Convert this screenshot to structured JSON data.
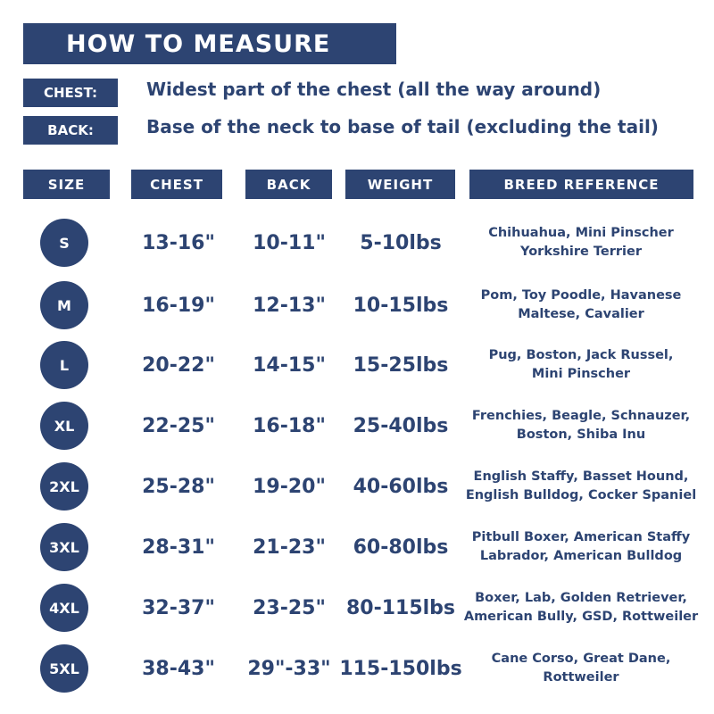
{
  "title": "HOW TO MEASURE",
  "measures": [
    {
      "label": "CHEST:",
      "text": "Widest part of the chest (all the way around)"
    },
    {
      "label": "BACK:",
      "text": "Base of the neck to base of tail (excluding the tail)"
    }
  ],
  "headers": {
    "size": "SIZE",
    "chest": "CHEST",
    "back": "BACK",
    "weight": "WEIGHT",
    "breed": "BREED REFERENCE"
  },
  "rows": [
    {
      "size": "S",
      "chest": "13-16\"",
      "back": "10-11\"",
      "weight": "5-10lbs",
      "breed1": "Chihuahua, Mini Pinscher",
      "breed2": "Yorkshire Terrier"
    },
    {
      "size": "M",
      "chest": "16-19\"",
      "back": "12-13\"",
      "weight": "10-15lbs",
      "breed1": "Pom, Toy Poodle, Havanese",
      "breed2": "Maltese, Cavalier"
    },
    {
      "size": "L",
      "chest": "20-22\"",
      "back": "14-15\"",
      "weight": "15-25lbs",
      "breed1": "Pug, Boston, Jack Russel,",
      "breed2": "Mini Pinscher"
    },
    {
      "size": "XL",
      "chest": "22-25\"",
      "back": "16-18\"",
      "weight": "25-40lbs",
      "breed1": "Frenchies, Beagle, Schnauzer,",
      "breed2": "Boston, Shiba Inu"
    },
    {
      "size": "2XL",
      "chest": "25-28\"",
      "back": "19-20\"",
      "weight": "40-60lbs",
      "breed1": "English Staffy, Basset Hound,",
      "breed2": "English Bulldog, Cocker Spaniel"
    },
    {
      "size": "3XL",
      "chest": "28-31\"",
      "back": "21-23\"",
      "weight": "60-80lbs",
      "breed1": "Pitbull Boxer, American Staffy",
      "breed2": "Labrador, American Bulldog"
    },
    {
      "size": "4XL",
      "chest": "32-37\"",
      "back": "23-25\"",
      "weight": "80-115lbs",
      "breed1": "Boxer, Lab, Golden Retriever,",
      "breed2": "American Bully, GSD, Rottweiler"
    },
    {
      "size": "5XL",
      "chest": "38-43\"",
      "back": "29\"-33\"",
      "weight": "115-150lbs",
      "breed1": "Cane Corso, Great Dane,",
      "breed2": "Rottweiler"
    }
  ],
  "colors": {
    "navy": "#2d4472",
    "background": "#ffffff"
  }
}
